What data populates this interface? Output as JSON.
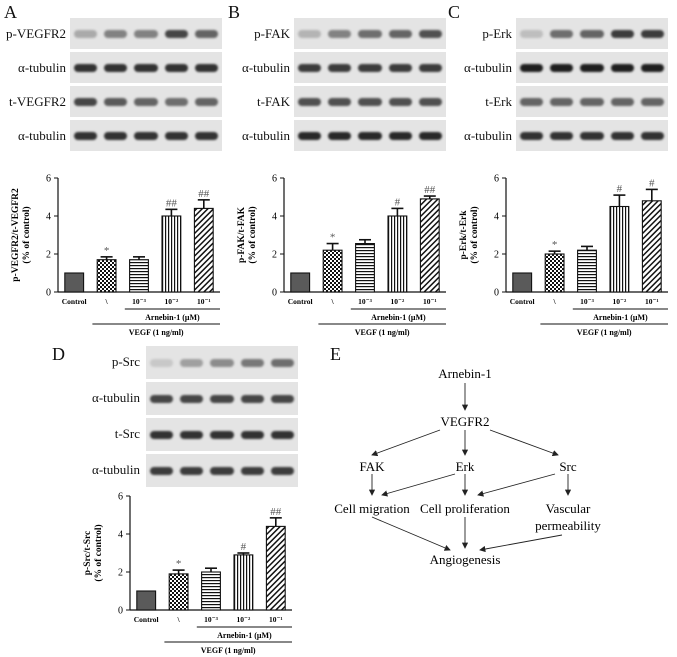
{
  "panels": [
    {
      "letter": "A",
      "blots": [
        "p-VEGFR2",
        "α-tubulin",
        "t-VEGFR2",
        "α-tubulin"
      ],
      "bands": [
        [
          0.25,
          0.45,
          0.45,
          0.75,
          0.6
        ],
        [
          0.85,
          0.85,
          0.85,
          0.85,
          0.85
        ],
        [
          0.75,
          0.65,
          0.6,
          0.55,
          0.6
        ],
        [
          0.85,
          0.85,
          0.85,
          0.85,
          0.85
        ]
      ],
      "chart_data": {
        "type": "bar",
        "categories": [
          "Control",
          "\\",
          "10⁻³",
          "10⁻²",
          "10⁻¹"
        ],
        "values": [
          1.0,
          1.7,
          1.7,
          4.0,
          4.4
        ],
        "errors": [
          0.0,
          0.15,
          0.15,
          0.35,
          0.45
        ],
        "annotations": [
          "",
          "*",
          "",
          "##",
          "##"
        ],
        "ylabel": "p-VEGFR2/t-VEGFR2\n(% of control)",
        "ylim": [
          0,
          6
        ],
        "yticks": [
          0,
          2,
          4,
          6
        ],
        "group_label": "Arnebin-1 (μM)",
        "xlabel": "VEGF (1 ng/ml)"
      }
    },
    {
      "letter": "B",
      "blots": [
        "p-FAK",
        "α-tubulin",
        "t-FAK",
        "α-tubulin"
      ],
      "bands": [
        [
          0.2,
          0.45,
          0.55,
          0.6,
          0.7
        ],
        [
          0.8,
          0.8,
          0.8,
          0.8,
          0.8
        ],
        [
          0.7,
          0.7,
          0.7,
          0.7,
          0.7
        ],
        [
          0.9,
          0.9,
          0.9,
          0.9,
          0.9
        ]
      ],
      "chart_data": {
        "type": "bar",
        "categories": [
          "Control",
          "\\",
          "10⁻³",
          "10⁻²",
          "10⁻¹"
        ],
        "values": [
          1.0,
          2.2,
          2.55,
          4.0,
          4.9
        ],
        "errors": [
          0.0,
          0.35,
          0.2,
          0.4,
          0.15
        ],
        "annotations": [
          "",
          "*",
          "",
          "#",
          "##"
        ],
        "ylabel": "p-FAK/t-FAK\n(% of control)",
        "ylim": [
          0,
          6
        ],
        "yticks": [
          0,
          2,
          4,
          6
        ],
        "group_label": "Arnebin-1 (μM)",
        "xlabel": "VEGF (1 ng/ml)"
      }
    },
    {
      "letter": "C",
      "blots": [
        "p-Erk",
        "α-tubulin",
        "t-Erk",
        "α-tubulin"
      ],
      "bands": [
        [
          0.15,
          0.55,
          0.6,
          0.8,
          0.8
        ],
        [
          0.95,
          0.95,
          0.95,
          0.95,
          0.95
        ],
        [
          0.6,
          0.6,
          0.6,
          0.6,
          0.6
        ],
        [
          0.85,
          0.85,
          0.85,
          0.85,
          0.85
        ]
      ],
      "chart_data": {
        "type": "bar",
        "categories": [
          "Control",
          "\\",
          "10⁻³",
          "10⁻²",
          "10⁻¹"
        ],
        "values": [
          1.0,
          2.0,
          2.2,
          4.5,
          4.8
        ],
        "errors": [
          0.0,
          0.15,
          0.2,
          0.6,
          0.6
        ],
        "annotations": [
          "",
          "*",
          "",
          "#",
          "#"
        ],
        "ylabel": "p-Erk/t-Erk\n(% of control)",
        "ylim": [
          0,
          6
        ],
        "yticks": [
          0,
          2,
          4,
          6
        ],
        "group_label": "Arnebin-1 (μM)",
        "xlabel": "VEGF (1 ng/ml)"
      }
    },
    {
      "letter": "D",
      "blots": [
        "p-Src",
        "α-tubulin",
        "t-Src",
        "α-tubulin"
      ],
      "bands": [
        [
          0.1,
          0.3,
          0.4,
          0.5,
          0.55
        ],
        [
          0.75,
          0.75,
          0.75,
          0.75,
          0.75
        ],
        [
          0.85,
          0.85,
          0.85,
          0.85,
          0.85
        ],
        [
          0.8,
          0.8,
          0.8,
          0.8,
          0.8
        ]
      ],
      "chart_data": {
        "type": "bar",
        "categories": [
          "Control",
          "\\",
          "10⁻³",
          "10⁻²",
          "10⁻¹"
        ],
        "values": [
          1.0,
          1.9,
          2.0,
          2.9,
          4.4
        ],
        "errors": [
          0.0,
          0.2,
          0.2,
          0.1,
          0.45
        ],
        "annotations": [
          "",
          "*",
          "",
          "#",
          "##"
        ],
        "ylabel": "p-Src/t-Src\n(% of control)",
        "ylim": [
          0,
          6
        ],
        "yticks": [
          0,
          2,
          4,
          6
        ],
        "group_label": "Arnebin-1 (μM)",
        "xlabel": "VEGF (1 ng/ml)"
      }
    }
  ],
  "diagram": {
    "letter": "E",
    "nodes": {
      "arnebin": "Arnebin-1",
      "vegfr2": "VEGFR2",
      "fak": "FAK",
      "erk": "Erk",
      "src": "Src",
      "migration": "Cell migration",
      "proliferation": "Cell proliferation",
      "permeability_1": "Vascular",
      "permeability_2": "permeability",
      "angiogenesis": "Angiogenesis"
    }
  }
}
